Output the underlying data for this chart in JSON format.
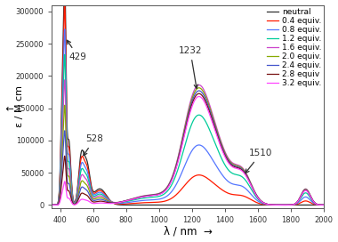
{
  "xlabel": "λ / nm",
  "ylabel": "ε / M cm",
  "xlim": [
    350,
    2000
  ],
  "ylim": [
    -5000,
    310000
  ],
  "yticks": [
    0,
    50000,
    100000,
    150000,
    200000,
    250000,
    300000
  ],
  "xticks": [
    400,
    600,
    800,
    1000,
    1200,
    1400,
    1600,
    1800,
    2000
  ],
  "series_colors": [
    "#303030",
    "#ff1a00",
    "#5577ff",
    "#00cc99",
    "#cc44cc",
    "#88aa00",
    "#4455cc",
    "#771111",
    "#ff44ff"
  ],
  "series_labels": [
    "neutral",
    "0.4 equiv.",
    "0.8 equiv.",
    "1.2 equiv.",
    "1.6 equiv.",
    "2.0 equiv.",
    "2.4 equiv.",
    "2.8 equiv",
    "3.2 equiv."
  ],
  "equiv_values": [
    0.0,
    0.4,
    0.8,
    1.2,
    1.6,
    2.0,
    2.4,
    2.8,
    3.2
  ],
  "background_color": "#ffffff",
  "legend_fontsize": 6.5,
  "axis_fontsize": 8.5
}
